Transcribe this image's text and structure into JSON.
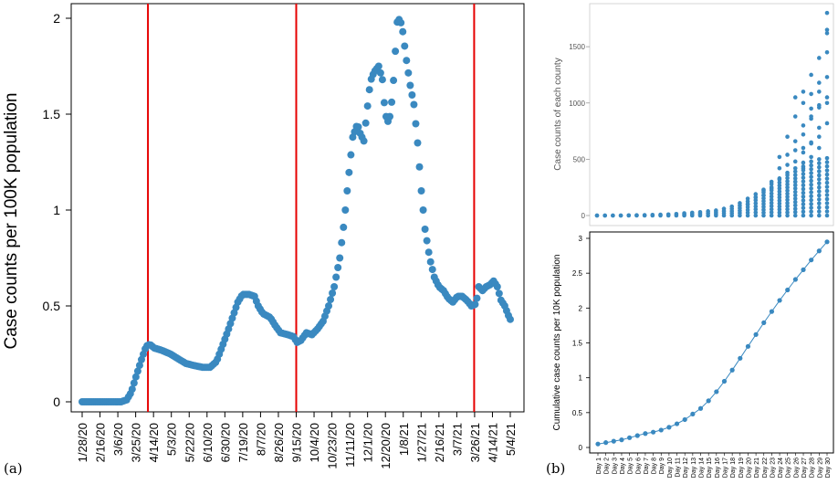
{
  "panel_labels": {
    "a": "(a)",
    "b": "(b)"
  },
  "chart_data": [
    {
      "id": "a",
      "type": "scatter",
      "ylabel": "Case counts per 100K population",
      "xlabel": "",
      "ylim": [
        0,
        2.05
      ],
      "yticks": [
        0,
        0.5,
        1,
        1.5,
        2
      ],
      "ytick_labels": [
        "0",
        "0.5",
        "1",
        "1.5",
        "2"
      ],
      "xtick_labels": [
        "1/28/20",
        "2/16/20",
        "3/6/20",
        "3/25/20",
        "4/14/20",
        "5/3/20",
        "5/22/20",
        "6/10/20",
        "6/30/20",
        "7/19/20",
        "8/7/20",
        "8/26/20",
        "9/15/20",
        "10/4/20",
        "10/23/20",
        "11/11/20",
        "12/1/20",
        "12/20/20",
        "1/8/21",
        "1/27/21",
        "2/16/21",
        "3/7/21",
        "3/26/21",
        "4/14/21",
        "5/4/21"
      ],
      "x_day_range": [
        0,
        462
      ],
      "vertical_lines_day": [
        71,
        231,
        423
      ],
      "color": "#3a89c0",
      "line_color": "#e60000",
      "keypoints": [
        [
          0,
          0
        ],
        [
          42,
          0
        ],
        [
          48,
          0.01
        ],
        [
          53,
          0.05
        ],
        [
          58,
          0.13
        ],
        [
          64,
          0.22
        ],
        [
          69,
          0.29
        ],
        [
          73,
          0.3
        ],
        [
          78,
          0.28
        ],
        [
          85,
          0.27
        ],
        [
          95,
          0.25
        ],
        [
          105,
          0.22
        ],
        [
          112,
          0.2
        ],
        [
          120,
          0.19
        ],
        [
          130,
          0.18
        ],
        [
          138,
          0.18
        ],
        [
          145,
          0.21
        ],
        [
          152,
          0.3
        ],
        [
          158,
          0.38
        ],
        [
          163,
          0.45
        ],
        [
          168,
          0.52
        ],
        [
          173,
          0.56
        ],
        [
          180,
          0.56
        ],
        [
          186,
          0.55
        ],
        [
          190,
          0.5
        ],
        [
          195,
          0.46
        ],
        [
          203,
          0.44
        ],
        [
          208,
          0.4
        ],
        [
          214,
          0.36
        ],
        [
          222,
          0.35
        ],
        [
          228,
          0.34
        ],
        [
          232,
          0.31
        ],
        [
          236,
          0.32
        ],
        [
          242,
          0.36
        ],
        [
          248,
          0.35
        ],
        [
          254,
          0.38
        ],
        [
          260,
          0.42
        ],
        [
          266,
          0.5
        ],
        [
          272,
          0.6
        ],
        [
          278,
          0.75
        ],
        [
          283,
          0.95
        ],
        [
          287,
          1.15
        ],
        [
          292,
          1.38
        ],
        [
          297,
          1.45
        ],
        [
          300,
          1.4
        ],
        [
          304,
          1.36
        ],
        [
          307,
          1.5
        ],
        [
          311,
          1.67
        ],
        [
          315,
          1.72
        ],
        [
          320,
          1.75
        ],
        [
          324,
          1.68
        ],
        [
          327,
          1.5
        ],
        [
          331,
          1.45
        ],
        [
          335,
          1.6
        ],
        [
          340,
          1.98
        ],
        [
          343,
          2.0
        ],
        [
          346,
          1.93
        ],
        [
          350,
          1.78
        ],
        [
          354,
          1.65
        ],
        [
          358,
          1.55
        ],
        [
          362,
          1.35
        ],
        [
          366,
          1.1
        ],
        [
          370,
          0.9
        ],
        [
          375,
          0.75
        ],
        [
          380,
          0.65
        ],
        [
          385,
          0.6
        ],
        [
          390,
          0.58
        ],
        [
          395,
          0.54
        ],
        [
          400,
          0.52
        ],
        [
          405,
          0.55
        ],
        [
          410,
          0.55
        ],
        [
          415,
          0.53
        ],
        [
          420,
          0.5
        ],
        [
          425,
          0.51
        ],
        [
          428,
          0.6
        ],
        [
          432,
          0.58
        ],
        [
          436,
          0.6
        ],
        [
          440,
          0.61
        ],
        [
          444,
          0.63
        ],
        [
          448,
          0.6
        ],
        [
          452,
          0.53
        ],
        [
          456,
          0.5
        ],
        [
          460,
          0.45
        ],
        [
          462,
          0.43
        ]
      ]
    },
    {
      "id": "b-top",
      "type": "scatter",
      "ylabel": "Case counts of each county",
      "ylim": [
        0,
        1850
      ],
      "yticks": [
        0,
        500,
        1000,
        1500
      ],
      "ytick_labels": [
        "0",
        "500",
        "1000",
        "1500"
      ],
      "days": 30,
      "band_max": [
        0,
        0,
        0,
        0,
        2,
        3,
        4,
        6,
        8,
        10,
        14,
        20,
        25,
        30,
        38,
        45,
        60,
        80,
        110,
        150,
        190,
        230,
        280,
        320,
        360,
        420,
        470,
        480,
        500,
        510
      ],
      "outliers": [
        [
          20,
          100
        ],
        [
          21,
          160
        ],
        [
          22,
          220
        ],
        [
          23,
          300
        ],
        [
          24,
          420
        ],
        [
          25,
          540
        ],
        [
          26,
          660
        ],
        [
          27,
          800
        ],
        [
          28,
          950
        ],
        [
          29,
          1100
        ],
        [
          30,
          1800
        ],
        [
          22,
          180
        ],
        [
          23,
          240
        ],
        [
          24,
          330
        ],
        [
          25,
          450
        ],
        [
          26,
          580
        ],
        [
          27,
          720
        ],
        [
          28,
          860
        ],
        [
          29,
          980
        ],
        [
          30,
          1650
        ],
        [
          24,
          520
        ],
        [
          25,
          700
        ],
        [
          26,
          880
        ],
        [
          27,
          1000
        ],
        [
          28,
          1080
        ],
        [
          29,
          1180
        ],
        [
          30,
          1450
        ],
        [
          26,
          1050
        ],
        [
          27,
          1100
        ],
        [
          28,
          1250
        ],
        [
          29,
          1400
        ],
        [
          30,
          1620
        ],
        [
          27,
          600
        ],
        [
          28,
          650
        ],
        [
          29,
          700
        ],
        [
          30,
          1050
        ],
        [
          25,
          380
        ],
        [
          26,
          480
        ],
        [
          27,
          560
        ],
        [
          28,
          640
        ],
        [
          29,
          780
        ],
        [
          30,
          1000
        ],
        [
          28,
          880
        ],
        [
          29,
          960
        ],
        [
          30,
          1230
        ],
        [
          26,
          300
        ],
        [
          27,
          420
        ],
        [
          28,
          520
        ],
        [
          29,
          600
        ],
        [
          30,
          820
        ]
      ],
      "color": "#3a89c0"
    },
    {
      "id": "b-bottom",
      "type": "line",
      "ylabel": "Cumulative case counts per 10K population",
      "ylim": [
        0,
        3.05
      ],
      "yticks": [
        0,
        0.5,
        1,
        1.5,
        2,
        2.5,
        3
      ],
      "ytick_labels": [
        "0",
        "0.5",
        "1",
        "1.5",
        "2",
        "2.5",
        "3"
      ],
      "categories": [
        "Day 1",
        "Day 2",
        "Day 3",
        "Day 4",
        "Day 5",
        "Day 6",
        "Day 7",
        "Day 8",
        "Day 9",
        "Day 10",
        "Day 11",
        "Day 12",
        "Day 13",
        "Day 14",
        "Day 15",
        "Day 16",
        "Day 17",
        "Day 18",
        "Day 19",
        "Day 20",
        "Day 21",
        "Day 22",
        "Day 23",
        "Day 24",
        "Day 25",
        "Day 26",
        "Day 27",
        "Day 28",
        "Day 29",
        "Day 30"
      ],
      "values": [
        0.05,
        0.07,
        0.09,
        0.11,
        0.14,
        0.17,
        0.2,
        0.22,
        0.25,
        0.29,
        0.34,
        0.4,
        0.48,
        0.56,
        0.67,
        0.8,
        0.95,
        1.11,
        1.28,
        1.45,
        1.62,
        1.79,
        1.95,
        2.11,
        2.26,
        2.41,
        2.55,
        2.69,
        2.82,
        2.95
      ],
      "color": "#3a89c0"
    }
  ]
}
